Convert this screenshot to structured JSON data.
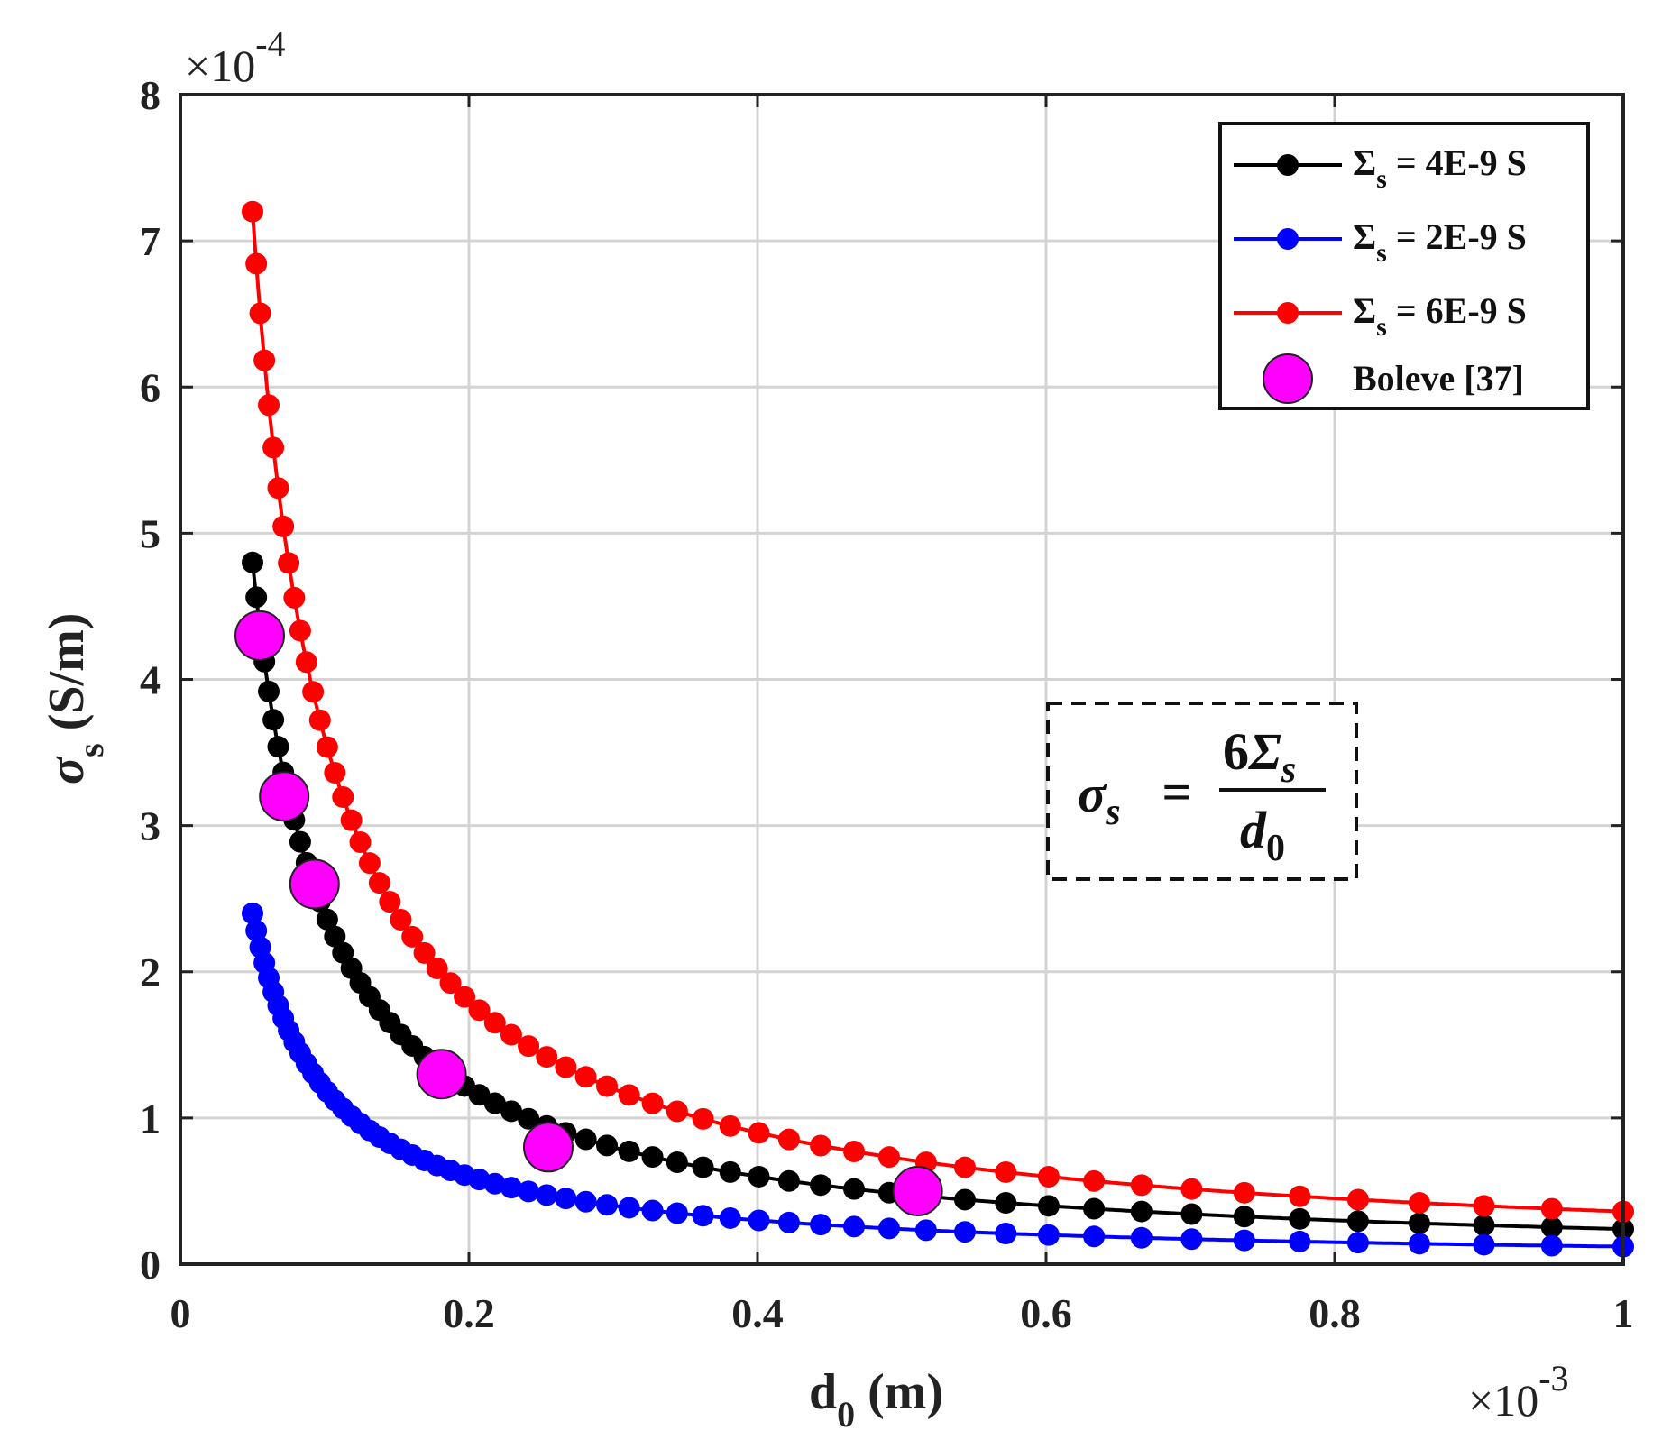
{
  "chart_data": {
    "type": "line",
    "title": "",
    "xlabel": {
      "main": "d",
      "sub": "0",
      "unit": "(m)"
    },
    "ylabel": {
      "main": "σ",
      "sub": "s",
      "unit": "(S/m)"
    },
    "x_multiplier": {
      "base": "×10",
      "exp": "-3"
    },
    "y_multiplier": {
      "base": "×10",
      "exp": "-4"
    },
    "xlim": [
      0,
      1
    ],
    "ylim": [
      0,
      8
    ],
    "x_ticks": [
      "0",
      "0.2",
      "0.4",
      "0.6",
      "0.8",
      "1"
    ],
    "y_ticks": [
      "0",
      "1",
      "2",
      "3",
      "4",
      "5",
      "6",
      "7",
      "8"
    ],
    "grid": true,
    "legend_position": "top-right",
    "x_start": 0.05,
    "x_end": 1.0,
    "series": [
      {
        "name": "Σs = 4E-9 S",
        "label_main": "Σ",
        "label_sub": "s",
        "label_rest": " = 4E-9 S",
        "color": "#000000",
        "coefficient": 0.24
      },
      {
        "name": "Σs = 2E-9 S",
        "label_main": "Σ",
        "label_sub": "s",
        "label_rest": " = 2E-9 S",
        "color": "#0000ff",
        "coefficient": 0.12
      },
      {
        "name": "Σs = 6E-9 S",
        "label_main": "Σ",
        "label_sub": "s",
        "label_rest": " = 6E-9 S",
        "color": "#ff0000",
        "coefficient": 0.36
      }
    ],
    "reference": {
      "name": "Boleve [37]",
      "color": "#ff00ff",
      "x": [
        0.055,
        0.072,
        0.093,
        0.181,
        0.255,
        0.511
      ],
      "y": [
        4.3,
        3.2,
        2.6,
        1.3,
        0.8,
        0.5
      ]
    },
    "annotation": {
      "lhs_main": "σ",
      "lhs_sub": "s",
      "equals": "=",
      "num_coef": "6",
      "num_main": "Σ",
      "num_sub": "s",
      "den_main": "d",
      "den_sub": "0"
    }
  }
}
